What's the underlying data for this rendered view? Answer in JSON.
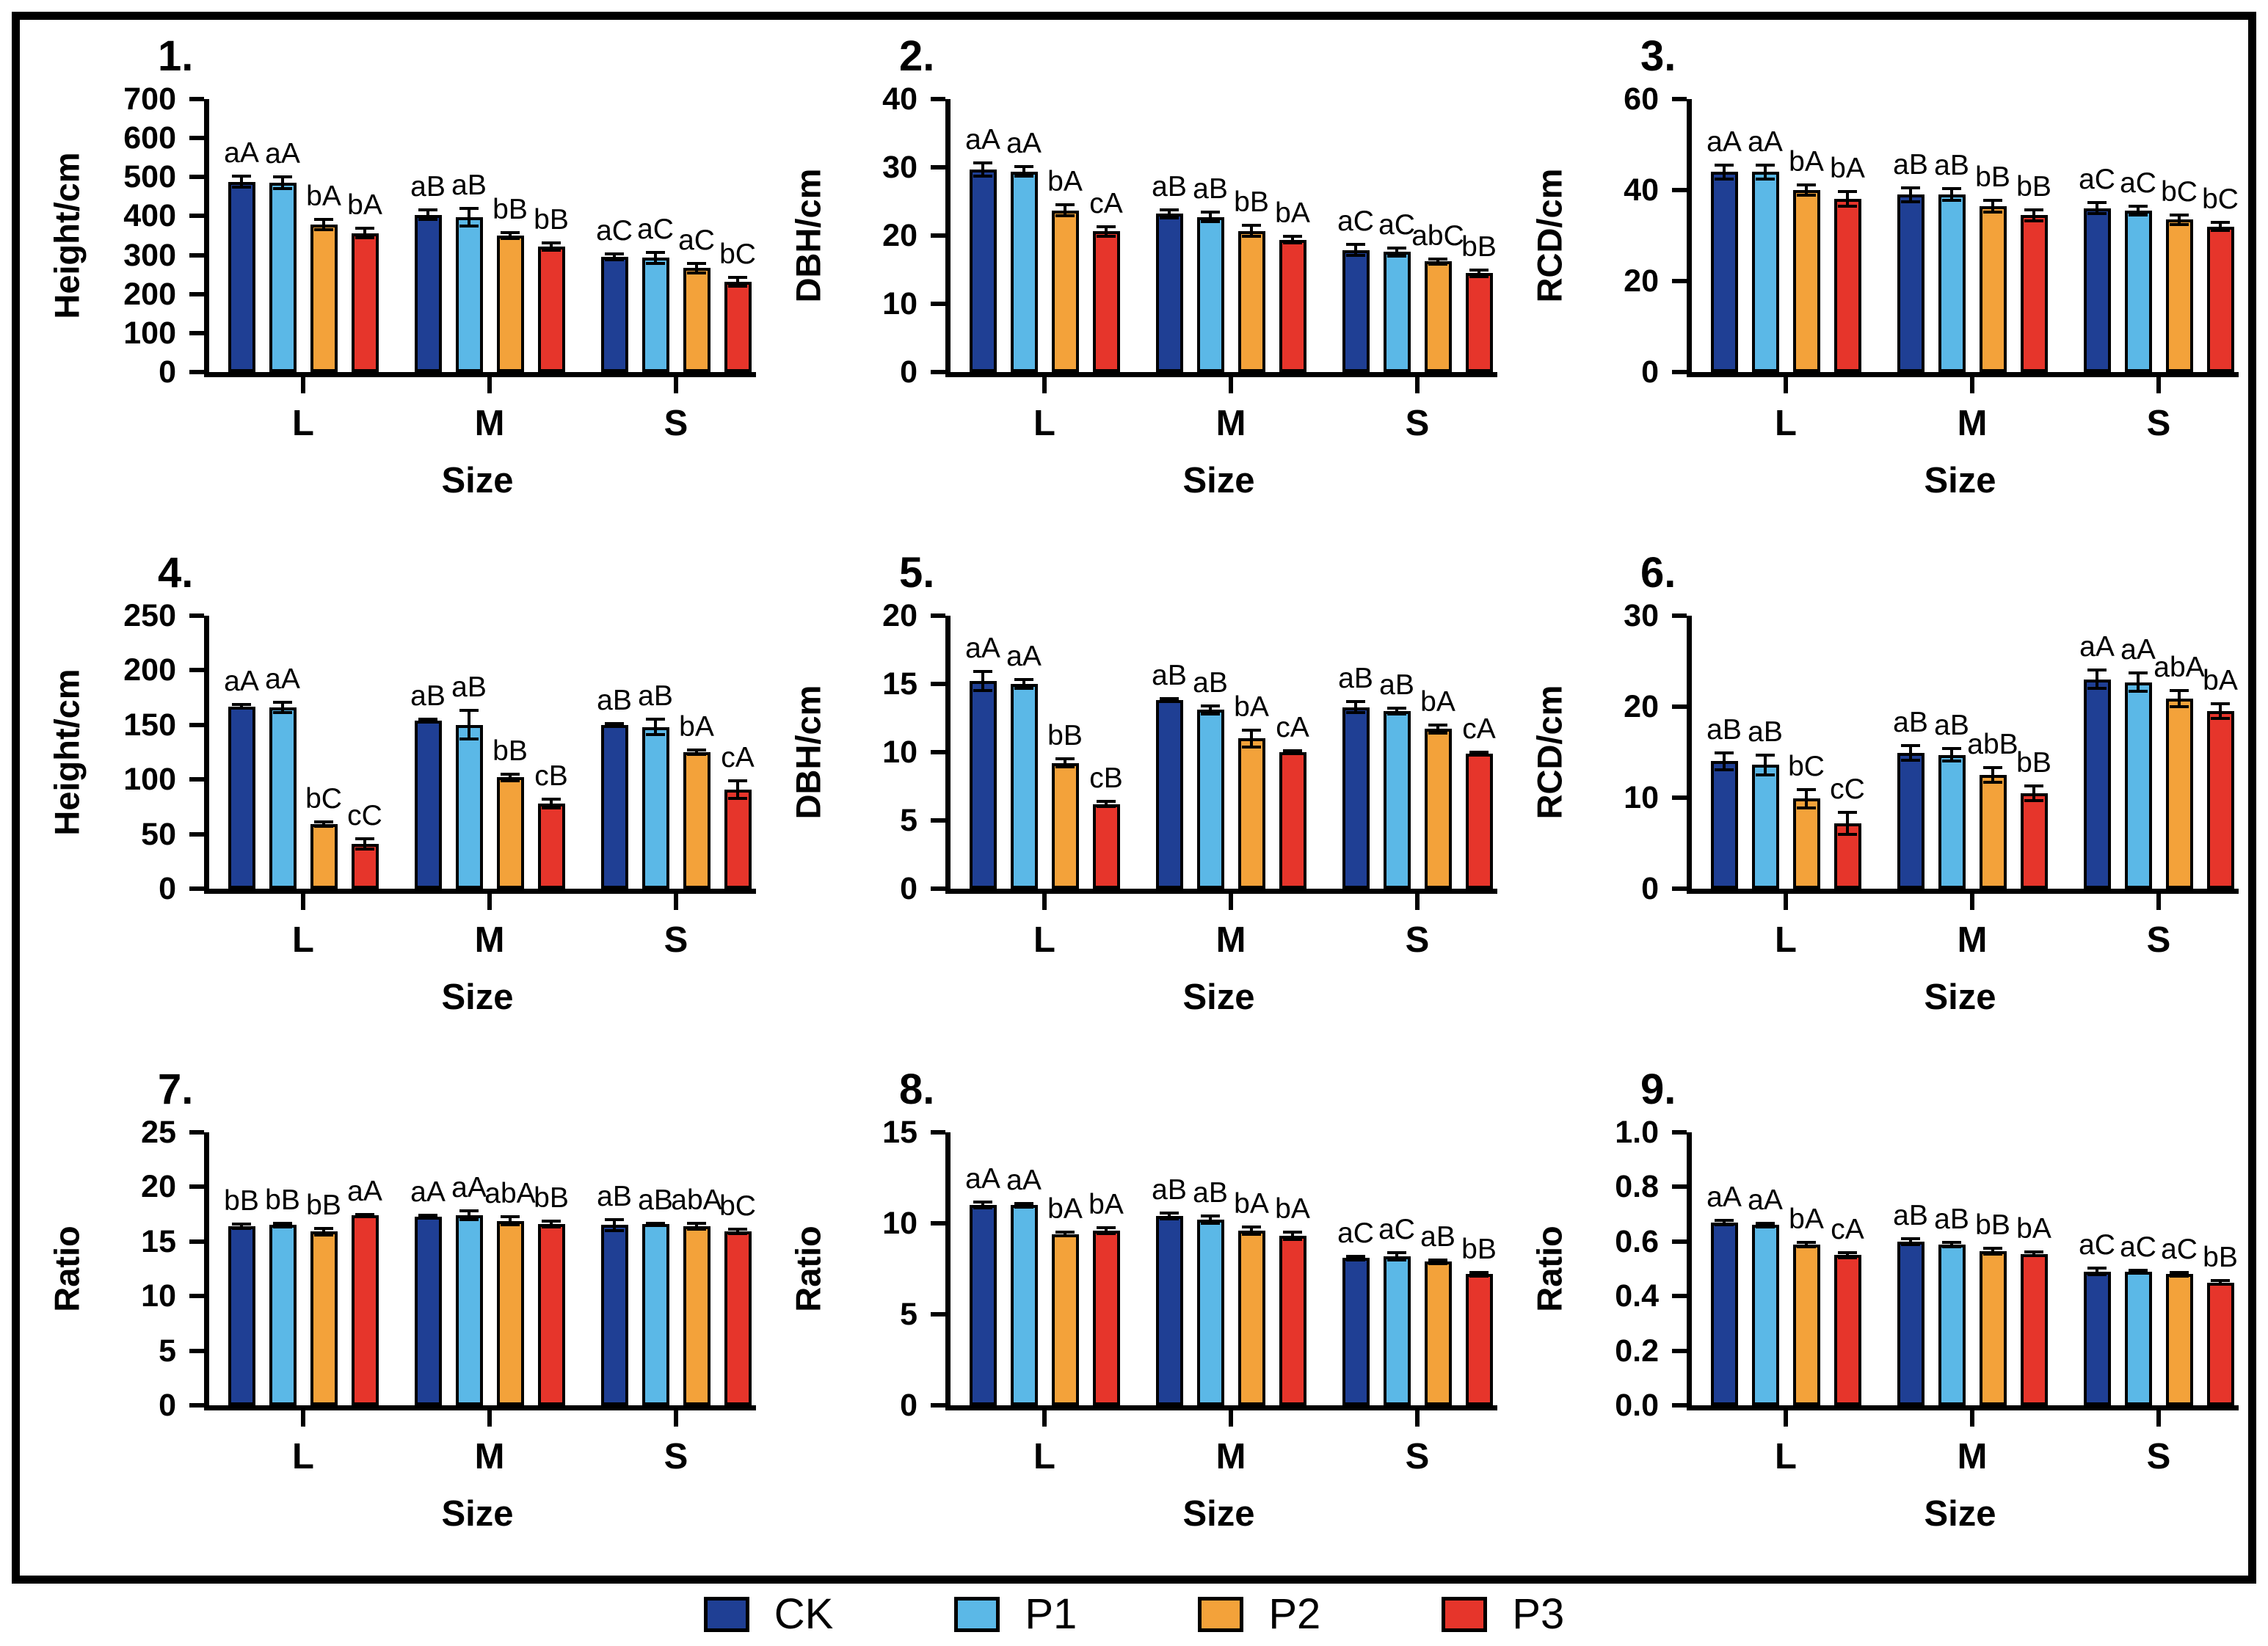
{
  "figure": {
    "xlabel": "Size",
    "categories": [
      "L",
      "M",
      "S"
    ],
    "series_names": [
      "CK",
      "P1",
      "P2",
      "P3"
    ],
    "colors": {
      "CK": "#1f3f94",
      "P1": "#5bb8e7",
      "P2": "#f3a23a",
      "P3": "#e6352b"
    },
    "legend_items": [
      {
        "label": "CK",
        "color": "#1f3f94"
      },
      {
        "label": "P1",
        "color": "#5bb8e7"
      },
      {
        "label": "P2",
        "color": "#f3a23a"
      },
      {
        "label": "P3",
        "color": "#e6352b"
      }
    ]
  },
  "chart_data": [
    {
      "type": "bar",
      "num": "1.",
      "ylabel": "Height/cm",
      "xlabel": "Size",
      "ylim": [
        0,
        700
      ],
      "yticks": [
        0,
        100,
        200,
        300,
        400,
        500,
        600,
        700
      ],
      "ytick_labels": [
        "0",
        "100",
        "200",
        "300",
        "400",
        "500",
        "600",
        "700"
      ],
      "categories": [
        "L",
        "M",
        "S"
      ],
      "grid": false,
      "legend_position": "bottom-shared",
      "series": [
        {
          "name": "CK",
          "values": [
            488,
            403,
            295
          ],
          "errors": [
            14,
            12,
            8
          ],
          "sig_labels": [
            "aA",
            "aB",
            "aC"
          ]
        },
        {
          "name": "P1",
          "values": [
            485,
            397,
            293
          ],
          "errors": [
            15,
            22,
            14
          ],
          "sig_labels": [
            "aA",
            "aB",
            "aC"
          ]
        },
        {
          "name": "P2",
          "values": [
            378,
            350,
            267
          ],
          "errors": [
            13,
            7,
            12
          ],
          "sig_labels": [
            "bA",
            "bB",
            "aC"
          ]
        },
        {
          "name": "P3",
          "values": [
            356,
            322,
            232
          ],
          "errors": [
            12,
            9,
            11
          ],
          "sig_labels": [
            "bA",
            "bB",
            "bC"
          ]
        }
      ]
    },
    {
      "type": "bar",
      "num": "2.",
      "ylabel": "DBH/cm",
      "xlabel": "Size",
      "ylim": [
        0,
        40
      ],
      "yticks": [
        0,
        10,
        20,
        30,
        40
      ],
      "ytick_labels": [
        "0",
        "10",
        "20",
        "30",
        "40"
      ],
      "categories": [
        "L",
        "M",
        "S"
      ],
      "grid": false,
      "legend_position": "bottom-shared",
      "series": [
        {
          "name": "CK",
          "values": [
            29.7,
            23.2,
            17.9
          ],
          "errors": [
            1.0,
            0.6,
            0.8
          ],
          "sig_labels": [
            "aA",
            "aB",
            "aC"
          ]
        },
        {
          "name": "P1",
          "values": [
            29.4,
            22.7,
            17.6
          ],
          "errors": [
            0.7,
            0.7,
            0.6
          ],
          "sig_labels": [
            "aA",
            "aB",
            "aC"
          ]
        },
        {
          "name": "P2",
          "values": [
            23.7,
            20.7,
            16.2
          ],
          "errors": [
            0.8,
            0.8,
            0.4
          ],
          "sig_labels": [
            "bA",
            "bB",
            "abC"
          ]
        },
        {
          "name": "P3",
          "values": [
            20.6,
            19.4,
            14.5
          ],
          "errors": [
            0.7,
            0.5,
            0.5
          ],
          "sig_labels": [
            "cA",
            "bA",
            "bB"
          ]
        }
      ]
    },
    {
      "type": "bar",
      "num": "3.",
      "ylabel": "RCD/cm",
      "xlabel": "Size",
      "ylim": [
        0,
        60
      ],
      "yticks": [
        0,
        20,
        40,
        60
      ],
      "ytick_labels": [
        "0",
        "20",
        "40",
        "60"
      ],
      "categories": [
        "L",
        "M",
        "S"
      ],
      "grid": false,
      "legend_position": "bottom-shared",
      "series": [
        {
          "name": "CK",
          "values": [
            44,
            39,
            36
          ],
          "errors": [
            1.5,
            1.5,
            1.2
          ],
          "sig_labels": [
            "aA",
            "aB",
            "aC"
          ]
        },
        {
          "name": "P1",
          "values": [
            44,
            39,
            35.5
          ],
          "errors": [
            1.5,
            1.3,
            1.0
          ],
          "sig_labels": [
            "aA",
            "aB",
            "aC"
          ]
        },
        {
          "name": "P2",
          "values": [
            40,
            36.5,
            33.5
          ],
          "errors": [
            1.2,
            1.3,
            1.0
          ],
          "sig_labels": [
            "bA",
            "bB",
            "bC"
          ]
        },
        {
          "name": "P3",
          "values": [
            38,
            34.5,
            32
          ],
          "errors": [
            1.6,
            1.2,
            0.9
          ],
          "sig_labels": [
            "bA",
            "bB",
            "bC"
          ]
        }
      ]
    },
    {
      "type": "bar",
      "num": "4.",
      "ylabel": "Height/cm",
      "xlabel": "Size",
      "ylim": [
        0,
        250
      ],
      "yticks": [
        0,
        50,
        100,
        150,
        200,
        250
      ],
      "ytick_labels": [
        "0",
        "50",
        "100",
        "150",
        "200",
        "250"
      ],
      "categories": [
        "L",
        "M",
        "S"
      ],
      "grid": false,
      "legend_position": "bottom-shared",
      "series": [
        {
          "name": "CK",
          "values": [
            167,
            154,
            150
          ],
          "errors": [
            2,
            1,
            1
          ],
          "sig_labels": [
            "aA",
            "aB",
            "aB"
          ]
        },
        {
          "name": "P1",
          "values": [
            166,
            150,
            148
          ],
          "errors": [
            5,
            13,
            7
          ],
          "sig_labels": [
            "aA",
            "aB",
            "aB"
          ]
        },
        {
          "name": "P2",
          "values": [
            59,
            102,
            125
          ],
          "errors": [
            2,
            3,
            2
          ],
          "sig_labels": [
            "bC",
            "bB",
            "bA"
          ]
        },
        {
          "name": "P3",
          "values": [
            41,
            78,
            91
          ],
          "errors": [
            5,
            4,
            8
          ],
          "sig_labels": [
            "cC",
            "cB",
            "cA"
          ]
        }
      ]
    },
    {
      "type": "bar",
      "num": "5.",
      "ylabel": "DBH/cm",
      "xlabel": "Size",
      "ylim": [
        0,
        20
      ],
      "yticks": [
        0,
        5,
        10,
        15,
        20
      ],
      "ytick_labels": [
        "0",
        "5",
        "10",
        "15",
        "20"
      ],
      "categories": [
        "L",
        "M",
        "S"
      ],
      "grid": false,
      "legend_position": "bottom-shared",
      "series": [
        {
          "name": "CK",
          "values": [
            15.2,
            13.8,
            13.3
          ],
          "errors": [
            0.7,
            0.1,
            0.4
          ],
          "sig_labels": [
            "aA",
            "aB",
            "aB"
          ]
        },
        {
          "name": "P1",
          "values": [
            15.0,
            13.1,
            13.0
          ],
          "errors": [
            0.3,
            0.3,
            0.2
          ],
          "sig_labels": [
            "aA",
            "aB",
            "aB"
          ]
        },
        {
          "name": "P2",
          "values": [
            9.2,
            11.0,
            11.7
          ],
          "errors": [
            0.3,
            0.6,
            0.3
          ],
          "sig_labels": [
            "bB",
            "bA",
            "bA"
          ]
        },
        {
          "name": "P3",
          "values": [
            6.2,
            10.0,
            9.9
          ],
          "errors": [
            0.2,
            0.1,
            0.1
          ],
          "sig_labels": [
            "cB",
            "cA",
            "cA"
          ]
        }
      ]
    },
    {
      "type": "bar",
      "num": "6.",
      "ylabel": "RCD/cm",
      "xlabel": "Size",
      "ylim": [
        0,
        30
      ],
      "yticks": [
        0,
        10,
        20,
        30
      ],
      "ytick_labels": [
        "0",
        "10",
        "20",
        "30"
      ],
      "categories": [
        "L",
        "M",
        "S"
      ],
      "grid": false,
      "legend_position": "bottom-shared",
      "series": [
        {
          "name": "CK",
          "values": [
            14.0,
            14.9,
            23.0
          ],
          "errors": [
            0.9,
            0.8,
            1.0
          ],
          "sig_labels": [
            "aB",
            "aB",
            "aA"
          ]
        },
        {
          "name": "P1",
          "values": [
            13.6,
            14.7,
            22.7
          ],
          "errors": [
            1.1,
            0.7,
            1.0
          ],
          "sig_labels": [
            "aB",
            "aB",
            "aA"
          ]
        },
        {
          "name": "P2",
          "values": [
            9.9,
            12.5,
            20.9
          ],
          "errors": [
            1.0,
            0.8,
            0.9
          ],
          "sig_labels": [
            "bC",
            "abB",
            "abA"
          ]
        },
        {
          "name": "P3",
          "values": [
            7.2,
            10.5,
            19.5
          ],
          "errors": [
            1.2,
            0.8,
            0.8
          ],
          "sig_labels": [
            "cC",
            "bB",
            "bA"
          ]
        }
      ]
    },
    {
      "type": "bar",
      "num": "7.",
      "ylabel": "Ratio",
      "xlabel": "Size",
      "ylim": [
        0,
        25
      ],
      "yticks": [
        0,
        5,
        10,
        15,
        20,
        25
      ],
      "ytick_labels": [
        "0",
        "5",
        "10",
        "15",
        "20",
        "25"
      ],
      "categories": [
        "L",
        "M",
        "S"
      ],
      "grid": false,
      "legend_position": "bottom-shared",
      "series": [
        {
          "name": "CK",
          "values": [
            16.4,
            17.3,
            16.5
          ],
          "errors": [
            0.2,
            0.1,
            0.5
          ],
          "sig_labels": [
            "bB",
            "aA",
            "aB"
          ]
        },
        {
          "name": "P1",
          "values": [
            16.5,
            17.4,
            16.6
          ],
          "errors": [
            0.2,
            0.4,
            0.1
          ],
          "sig_labels": [
            "bB",
            "aA",
            "aB"
          ]
        },
        {
          "name": "P2",
          "values": [
            15.9,
            16.9,
            16.4
          ],
          "errors": [
            0.3,
            0.4,
            0.3
          ],
          "sig_labels": [
            "bB",
            "abA",
            "abA"
          ]
        },
        {
          "name": "P3",
          "values": [
            17.4,
            16.6,
            15.9
          ],
          "errors": [
            0.1,
            0.3,
            0.2
          ],
          "sig_labels": [
            "aA",
            "bB",
            "bC"
          ]
        }
      ]
    },
    {
      "type": "bar",
      "num": "8.",
      "ylabel": "Ratio",
      "xlabel": "Size",
      "ylim": [
        0,
        15
      ],
      "yticks": [
        0,
        5,
        10,
        15
      ],
      "ytick_labels": [
        "0",
        "5",
        "10",
        "15"
      ],
      "categories": [
        "L",
        "M",
        "S"
      ],
      "grid": false,
      "legend_position": "bottom-shared",
      "series": [
        {
          "name": "CK",
          "values": [
            11.0,
            10.4,
            8.1
          ],
          "errors": [
            0.15,
            0.15,
            0.1
          ],
          "sig_labels": [
            "aA",
            "aB",
            "aC"
          ]
        },
        {
          "name": "P1",
          "values": [
            11.0,
            10.2,
            8.2
          ],
          "errors": [
            0.1,
            0.2,
            0.2
          ],
          "sig_labels": [
            "aA",
            "aB",
            "aC"
          ]
        },
        {
          "name": "P2",
          "values": [
            9.4,
            9.6,
            7.9
          ],
          "errors": [
            0.1,
            0.2,
            0.1
          ],
          "sig_labels": [
            "bA",
            "bA",
            "aB"
          ]
        },
        {
          "name": "P3",
          "values": [
            9.6,
            9.3,
            7.2
          ],
          "errors": [
            0.15,
            0.2,
            0.1
          ],
          "sig_labels": [
            "bA",
            "bA",
            "bB"
          ]
        }
      ]
    },
    {
      "type": "bar",
      "num": "9.",
      "ylabel": "Ratio",
      "xlabel": "Size",
      "ylim": [
        0,
        1.0
      ],
      "yticks": [
        0,
        0.2,
        0.4,
        0.6,
        0.8,
        1.0
      ],
      "ytick_labels": [
        "0.0",
        "0.2",
        "0.4",
        "0.6",
        "0.8",
        "1.0"
      ],
      "categories": [
        "L",
        "M",
        "S"
      ],
      "grid": false,
      "legend_position": "bottom-shared",
      "series": [
        {
          "name": "CK",
          "values": [
            0.67,
            0.6,
            0.49
          ],
          "errors": [
            0.008,
            0.01,
            0.012
          ],
          "sig_labels": [
            "aA",
            "aB",
            "aC"
          ]
        },
        {
          "name": "P1",
          "values": [
            0.66,
            0.59,
            0.49
          ],
          "errors": [
            0.008,
            0.008,
            0.006
          ],
          "sig_labels": [
            "aA",
            "aB",
            "aC"
          ]
        },
        {
          "name": "P2",
          "values": [
            0.59,
            0.565,
            0.48
          ],
          "errors": [
            0.008,
            0.01,
            0.006
          ],
          "sig_labels": [
            "bA",
            "bB",
            "aC"
          ]
        },
        {
          "name": "P3",
          "values": [
            0.55,
            0.555,
            0.45
          ],
          "errors": [
            0.01,
            0.006,
            0.006
          ],
          "sig_labels": [
            "cA",
            "bA",
            "bB"
          ]
        }
      ]
    }
  ]
}
